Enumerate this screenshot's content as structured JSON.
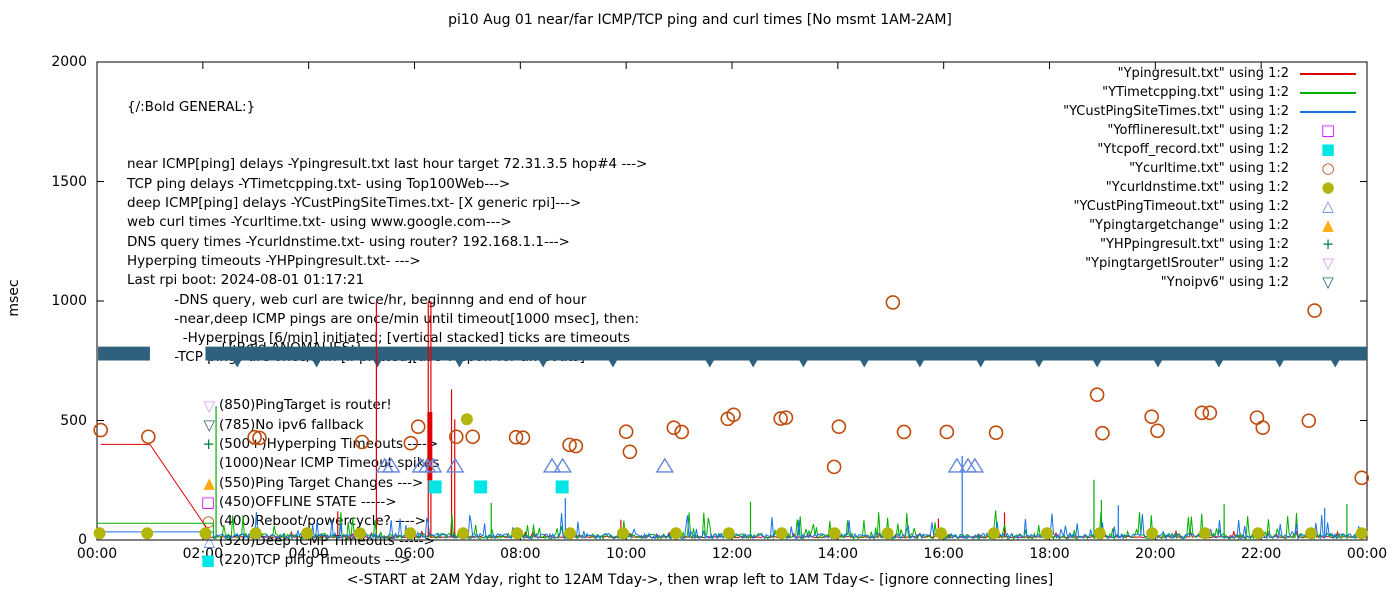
{
  "title": "pi10 Aug 01  near/far ICMP/TCP ping and curl times [No msmt 1AM-2AM]",
  "y_axis": {
    "label": "msec",
    "ticks": [
      0,
      500,
      1000,
      1500,
      2000
    ],
    "max": 2000
  },
  "x_axis": {
    "tick_labels": [
      "00:00",
      "02:00",
      "04:00",
      "06:00",
      "08:00",
      "10:00",
      "12:00",
      "14:00",
      "16:00",
      "18:00",
      "20:00",
      "22:00",
      "00:00"
    ],
    "label": "<-START at 2AM Yday, right to 12AM Tday->, then wrap left to 1AM Tday<- [ignore connecting lines]"
  },
  "legend": {
    "items": [
      {
        "label": "\"Ypingresult.txt\" using 1:2",
        "marker": "line",
        "color": "#e10000"
      },
      {
        "label": "\"YTimetcpping.txt\" using 1:2",
        "marker": "line",
        "color": "#00b000"
      },
      {
        "label": "\"YCustPingSiteTimes.txt\" using 1:2",
        "marker": "line",
        "color": "#1873e8"
      },
      {
        "label": "\"Yofflineresult.txt\" using 1:2",
        "marker": "square-open",
        "color": "#cc00ff"
      },
      {
        "label": "\"Ytcpoff_record.txt\" using 1:2",
        "marker": "square-filled",
        "color": "#00e5e5"
      },
      {
        "label": "\"Ycurltime.txt\" using 1:2",
        "marker": "circle-open",
        "color": "#bf4a0c"
      },
      {
        "label": "\"Ycurldnstime.txt\" using 1:2",
        "marker": "circle-filled",
        "color": "#b3b60a"
      },
      {
        "label": "\"YCustPingTimeout.txt\" using 1:2",
        "marker": "tri-open",
        "color": "#6487dc"
      },
      {
        "label": "\"Ypingtargetchange\" using 1:2",
        "marker": "tri-filled",
        "color": "#ffac12"
      },
      {
        "label": "\"YHPpingresult.txt\" using 1:2",
        "marker": "plus",
        "color": "#008040"
      },
      {
        "label": "\"YpingtargetISrouter\" using 1:2",
        "marker": "tri-down-open",
        "color": "#cf9ff2"
      },
      {
        "label": "\"Ynoipv6\" using 1:2",
        "marker": "tri-down-open",
        "color": "#2f617e"
      }
    ]
  },
  "general": {
    "header": "{/:Bold GENERAL:}",
    "lines": [
      "near ICMP[ping] delays -Ypingresult.txt last hour target 72.31.3.5 hop#4 --->",
      "TCP ping delays -YTimetcpping.txt- using Top100Web--->",
      "deep ICMP[ping] delays -YCustPingSiteTimes.txt- [X generic rpi]--->",
      "web curl times -Ycurltime.txt- using www.google.com--->",
      "DNS query times -Ycurldnstime.txt- using router? 192.168.1.1--->",
      "Hyperping timeouts -YHPpingresult.txt- --->",
      "Last rpi boot: 2024-08-01 01:17:21",
      "           -DNS query, web curl are twice/hr, beginnng and end of hour",
      "           -near,deep ICMP pings are once/min until timeout[1000 msec], then:",
      "             -Hyperpings [6/min] initiated; [vertical stacked] ticks are timeouts",
      "           -TCP pings are once/min [if plotted][use Ytcpoff for timeouts]"
    ]
  },
  "anomalies": {
    "header": "{/:Bold ANOMALIES:}",
    "items": [
      {
        "marker": "tri-down-open",
        "color": "#cf9ff2",
        "text": "(850)PingTarget is router!"
      },
      {
        "marker": "tri-down-open",
        "color": "#2f617e",
        "text": "(785)No ipv6 fallback"
      },
      {
        "marker": "plus",
        "color": "#008040",
        "text": "(500+)Hyperping Timeouts ---->"
      },
      {
        "marker": "none",
        "color": "#000000",
        "text": "(1000)Near ICMP Timeout spikes"
      },
      {
        "marker": "tri-filled",
        "color": "#ffac12",
        "text": "(550)Ping Target Changes --->"
      },
      {
        "marker": "square-open",
        "color": "#cc00ff",
        "text": "(450)OFFLINE STATE ----->"
      },
      {
        "marker": "circle-open",
        "color": "#bf4a0c",
        "text": "(400)Reboot/powercycle? ---->"
      },
      {
        "marker": "tri-open",
        "color": "#6487dc",
        "text": "(320)Deep ICMP Timeouts ----->"
      },
      {
        "marker": "square-filled",
        "color": "#00e5e5",
        "text": "(220)TCP ping Timeouts --->"
      }
    ]
  },
  "chart_data": {
    "type": "line",
    "x_unit": "hours since 2AM yesterday",
    "x_range": [
      0,
      24
    ],
    "ylim": [
      0,
      2000
    ],
    "ylabel": "msec",
    "grid": false,
    "legend_position": "top-right",
    "series": [
      {
        "name": "Ypingresult",
        "kind": "line",
        "color": "#e10000",
        "pre_segment": [
          [
            0.07,
            400
          ],
          [
            1.0,
            400
          ],
          [
            2.05,
            58
          ]
        ],
        "noise": {
          "from": 2.05,
          "to": 24,
          "base": 10,
          "amp": 28,
          "seed": 11
        },
        "spikes": [
          [
            4.55,
            120
          ],
          [
            5.28,
            1000
          ],
          [
            6.26,
            1000
          ],
          [
            6.31,
            1000
          ],
          [
            6.7,
            630
          ],
          [
            6.76,
            505
          ],
          [
            9.9,
            85
          ],
          [
            15.9,
            90
          ],
          [
            17.15,
            115
          ]
        ],
        "blocks": [
          {
            "t": 6.29,
            "v1": 250,
            "v2": 535,
            "w": 5
          }
        ]
      },
      {
        "name": "YTimetcpping",
        "kind": "line",
        "color": "#00b000",
        "pre_segment": [
          [
            0.0,
            70
          ],
          [
            2.2,
            70
          ]
        ],
        "noise": {
          "from": 2.2,
          "to": 24,
          "base": 5,
          "amp": 120,
          "seed": 23
        },
        "spikes": [
          [
            2.25,
            560
          ],
          [
            7.45,
            155
          ],
          [
            12.35,
            160
          ],
          [
            18.84,
            252
          ],
          [
            18.98,
            168
          ],
          [
            21.3,
            150
          ],
          [
            23.62,
            150
          ]
        ]
      },
      {
        "name": "YCustPingSiteTimes",
        "kind": "line",
        "color": "#1873e8",
        "pre_segment": [
          [
            0.0,
            34
          ],
          [
            2.2,
            34
          ]
        ],
        "noise": {
          "from": 2.2,
          "to": 24,
          "base": 6,
          "amp": 115,
          "seed": 47
        },
        "spikes": [
          [
            8.85,
            175
          ],
          [
            16.35,
            352
          ],
          [
            19.3,
            145
          ],
          [
            23.2,
            135
          ]
        ]
      },
      {
        "name": "Ycurltime",
        "kind": "scatter",
        "marker": "circle-open",
        "color": "#bf4a0c",
        "points": [
          [
            0.07,
            460
          ],
          [
            0.97,
            432
          ],
          [
            2.98,
            430
          ],
          [
            3.07,
            427
          ],
          [
            5.01,
            410
          ],
          [
            5.93,
            405
          ],
          [
            6.07,
            474
          ],
          [
            6.79,
            432
          ],
          [
            7.1,
            432
          ],
          [
            7.92,
            430
          ],
          [
            8.05,
            428
          ],
          [
            8.93,
            398
          ],
          [
            9.05,
            393
          ],
          [
            10.0,
            453
          ],
          [
            10.07,
            369
          ],
          [
            10.9,
            470
          ],
          [
            11.05,
            452
          ],
          [
            11.92,
            507
          ],
          [
            12.03,
            524
          ],
          [
            12.92,
            508
          ],
          [
            13.02,
            512
          ],
          [
            13.93,
            306
          ],
          [
            14.02,
            474
          ],
          [
            15.04,
            994
          ],
          [
            15.25,
            452
          ],
          [
            16.06,
            452
          ],
          [
            16.99,
            449
          ],
          [
            18.9,
            608
          ],
          [
            19.0,
            447
          ],
          [
            19.93,
            516
          ],
          [
            20.04,
            457
          ],
          [
            20.88,
            532
          ],
          [
            21.03,
            532
          ],
          [
            21.92,
            512
          ],
          [
            22.03,
            470
          ],
          [
            22.9,
            499
          ],
          [
            23.01,
            960
          ],
          [
            23.9,
            260
          ]
        ]
      },
      {
        "name": "Ycurldnstime",
        "kind": "scatter",
        "marker": "circle-filled",
        "color": "#b3b60a",
        "points": [
          [
            0.05,
            28
          ],
          [
            0.95,
            28
          ],
          [
            2.05,
            28
          ],
          [
            3.0,
            28
          ],
          [
            3.97,
            28
          ],
          [
            4.97,
            28
          ],
          [
            5.92,
            28
          ],
          [
            6.92,
            28
          ],
          [
            6.99,
            505
          ],
          [
            7.94,
            28
          ],
          [
            8.94,
            28
          ],
          [
            9.94,
            28
          ],
          [
            10.94,
            28
          ],
          [
            11.94,
            28
          ],
          [
            12.94,
            28
          ],
          [
            13.94,
            28
          ],
          [
            14.94,
            28
          ],
          [
            15.95,
            28
          ],
          [
            16.95,
            28
          ],
          [
            17.95,
            28
          ],
          [
            18.95,
            28
          ],
          [
            19.94,
            28
          ],
          [
            20.94,
            28
          ],
          [
            21.94,
            28
          ],
          [
            22.94,
            28
          ],
          [
            23.9,
            28
          ]
        ]
      },
      {
        "name": "YCustPingTimeout",
        "kind": "scatter",
        "marker": "tri-open",
        "color": "#6487dc",
        "points": [
          [
            5.44,
            310
          ],
          [
            5.56,
            310
          ],
          [
            6.12,
            310
          ],
          [
            6.24,
            310
          ],
          [
            6.35,
            310
          ],
          [
            6.77,
            310
          ],
          [
            8.6,
            310
          ],
          [
            8.8,
            310
          ],
          [
            10.73,
            310
          ],
          [
            16.25,
            310
          ],
          [
            16.46,
            310
          ],
          [
            16.59,
            310
          ]
        ]
      },
      {
        "name": "Ytcpoff_record",
        "kind": "scatter",
        "marker": "square-filled",
        "color": "#00e5e5",
        "points": [
          [
            6.39,
            222
          ],
          [
            7.25,
            222
          ],
          [
            8.79,
            222
          ]
        ]
      },
      {
        "name": "Ynoipv6",
        "kind": "band",
        "color": "#2f617e",
        "value": 780,
        "half_height_msec": 29,
        "segments_hours": [
          [
            0.02,
            1.0
          ],
          [
            2.05,
            24
          ]
        ],
        "tick_marks_hours": [
          2.65,
          4.15,
          5.3,
          6.85,
          8.43,
          9.75,
          11.58,
          12.4,
          13.35,
          14.5,
          15.55,
          16.7,
          17.8,
          18.9,
          20.05,
          21.2,
          22.35,
          23.4
        ]
      }
    ]
  }
}
